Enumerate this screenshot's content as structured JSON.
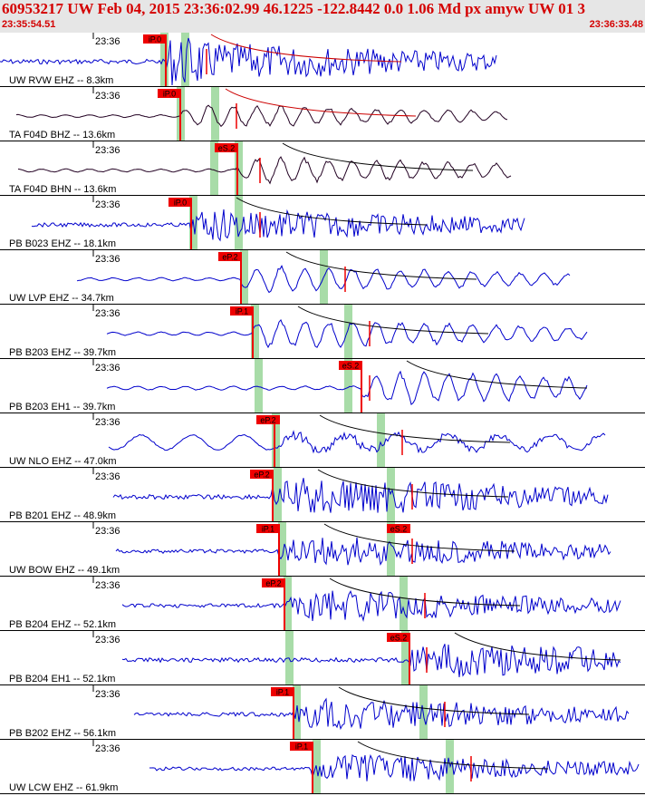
{
  "header": {
    "title": "60953217 UW Feb 04, 2015 23:36:02.99   46.1225 -122.8442  0.0 1.06 Md px amyw UW 01   3",
    "start_time": "23:35:54.51",
    "end_time": "23:36:33.48"
  },
  "colors": {
    "header_text": "#d40000",
    "header_bg": "#e6e6e6",
    "trace_blue": "#0000cc",
    "trace_dark": "#220022",
    "pick_box": "#ee0000",
    "window": "#a8dca8",
    "fit_curve": "#000000",
    "fit_curve_red": "#cc0000"
  },
  "chart_data": {
    "type": "line",
    "title": "",
    "time_tick_label": "23:36",
    "traces": [
      {
        "label": "UW RVW EHZ -- 8.3km",
        "pick": "iP.0",
        "color": "blue",
        "s_pick": null
      },
      {
        "label": "TA F04D BHZ -- 13.6km",
        "pick": "iP.0",
        "color": "dark",
        "s_pick": null
      },
      {
        "label": "TA F04D BHN -- 13.6km",
        "pick": "eS.2",
        "color": "dark",
        "s_pick": null
      },
      {
        "label": "PB B023 EHZ -- 18.1km",
        "pick": "iP.0",
        "color": "blue",
        "s_pick": null
      },
      {
        "label": "UW LVP EHZ -- 34.7km",
        "pick": "eP.2",
        "color": "blue",
        "s_pick": null
      },
      {
        "label": "PB B203 EHZ -- 39.7km",
        "pick": "iP.1",
        "color": "blue",
        "s_pick": null
      },
      {
        "label": "PB B203 EH1 -- 39.7km",
        "pick": "eS.2",
        "color": "blue",
        "s_pick": null
      },
      {
        "label": "UW NLO EHZ -- 47.0km",
        "pick": "eP.2",
        "color": "blue",
        "s_pick": null
      },
      {
        "label": "PB B201 EHZ -- 48.9km",
        "pick": "eP.2",
        "color": "blue",
        "s_pick": null
      },
      {
        "label": "UW BOW EHZ -- 49.1km",
        "pick": "iP.1",
        "color": "blue",
        "s_pick": "eS.2"
      },
      {
        "label": "PB B204 EHZ -- 52.1km",
        "pick": "eP.2",
        "color": "blue",
        "s_pick": null
      },
      {
        "label": "PB B204 EH1 -- 52.1km",
        "pick": "eS.2",
        "color": "blue",
        "s_pick": null
      },
      {
        "label": "PB B202 EHZ -- 56.1km",
        "pick": "iP.1",
        "color": "blue",
        "s_pick": null
      },
      {
        "label": "UW LCW EHZ -- 61.9km",
        "pick": "iP.1",
        "color": "blue",
        "s_pick": null
      }
    ]
  }
}
